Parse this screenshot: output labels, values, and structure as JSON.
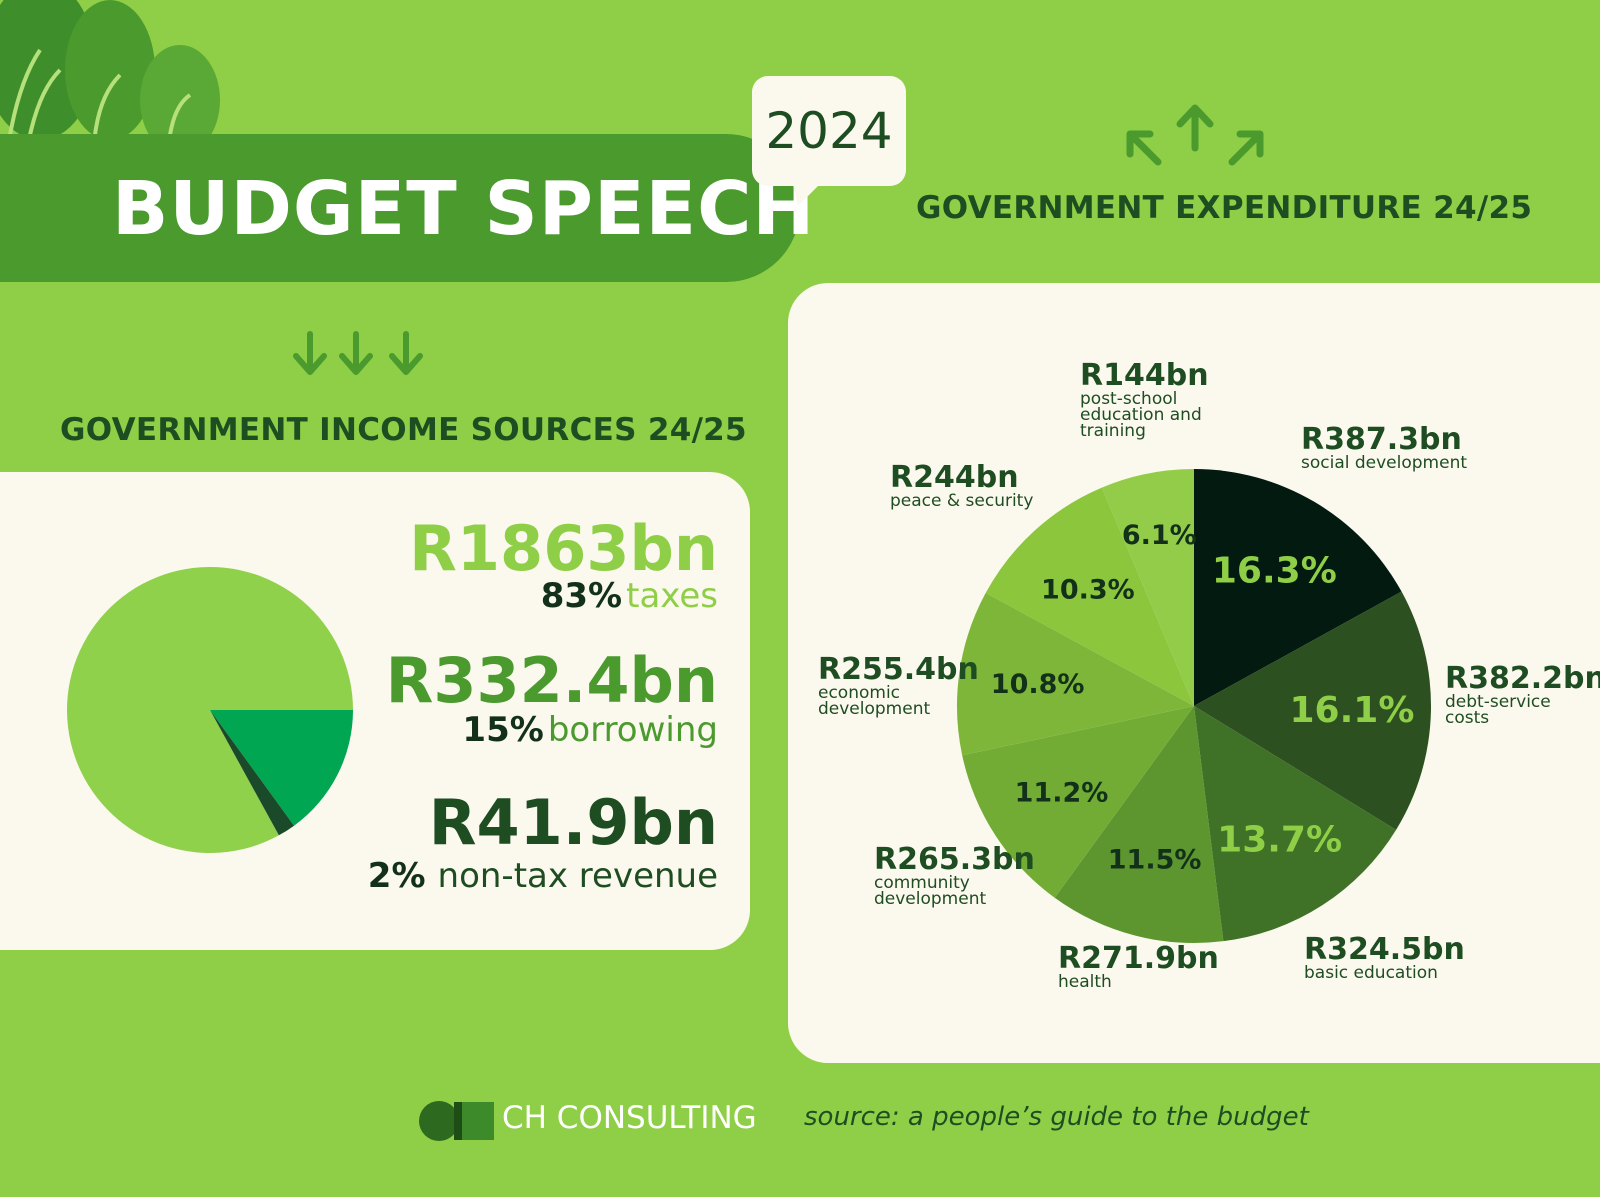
{
  "header": {
    "title": "BUDGET SPEECH",
    "year": "2024"
  },
  "income": {
    "heading": "GOVERNMENT INCOME SOURCES 24/25",
    "items": [
      {
        "amount": "R1863bn",
        "percent": "83%",
        "label": "taxes"
      },
      {
        "amount": "R332.4bn",
        "percent": "15%",
        "label": "borrowing"
      },
      {
        "amount": "R41.9bn",
        "percent": "2%",
        "label": "non-tax revenue"
      }
    ]
  },
  "expenditure": {
    "heading": "GOVERNMENT EXPENDITURE 24/25"
  },
  "footer": {
    "brand": "CH CONSULTING",
    "source": "source: a people’s guide to the budget"
  },
  "colors": {
    "background": "#8fcf47",
    "band": "#4a9a2e",
    "panel": "#fbf8ee",
    "dark_text": "#1f4d22"
  },
  "icons": [
    "plant-decoration-icon",
    "arrow-down-icon",
    "arrow-up-icon",
    "logo-icon"
  ],
  "chart_data": [
    {
      "type": "pie",
      "title": "GOVERNMENT INCOME SOURCES 24/25",
      "categories": [
        "taxes",
        "borrowing",
        "non-tax revenue"
      ],
      "values": [
        83,
        15,
        2
      ],
      "amounts": [
        "R1863bn",
        "R332.4bn",
        "R41.9bn"
      ],
      "colors": [
        "#8fd14a",
        "#00a651",
        "#1b4a2a"
      ]
    },
    {
      "type": "pie",
      "title": "GOVERNMENT EXPENDITURE 24/25",
      "categories": [
        "social development",
        "debt-service costs",
        "basic education",
        "health",
        "community development",
        "economic development",
        "peace & security",
        "post-school education and training"
      ],
      "values": [
        16.3,
        16.1,
        13.7,
        11.5,
        11.2,
        10.8,
        10.3,
        6.1
      ],
      "value_labels": [
        "16.3%",
        "16.1%",
        "13.7%",
        "11.5%",
        "11.2%",
        "10.8%",
        "10.3%",
        "6.1%"
      ],
      "amounts": [
        "R387.3bn",
        "R382.2bn",
        "R324.5bn",
        "R271.9bn",
        "R265.3bn",
        "R255.4bn",
        "R244bn",
        "R144bn"
      ],
      "colors": [
        "#021a10",
        "#2d5021",
        "#3f7226",
        "#5d962e",
        "#72ac34",
        "#7eb63a",
        "#8bc63d",
        "#93cc49"
      ],
      "label_colors": [
        "#8fcf47",
        "#8fcf47",
        "#8fcf47",
        "#13311a",
        "#13311a",
        "#13311a",
        "#13311a",
        "#13311a"
      ]
    }
  ]
}
